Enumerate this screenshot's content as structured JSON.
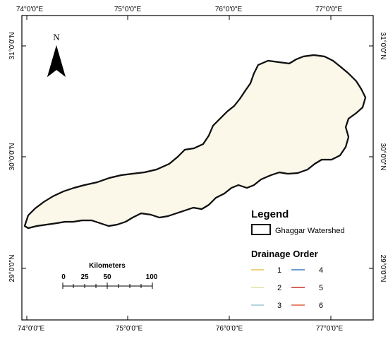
{
  "map": {
    "top_ticks": [
      "74°0'0\"E",
      "75°0'0\"E",
      "76°0'0\"E",
      "77°0'0\"E"
    ],
    "bottom_ticks": [
      "74°0'0\"E",
      "75°0'0\"E",
      "76°0'0\"E",
      "77°0'0\"E"
    ],
    "left_ticks": [
      "31°0'0\"N",
      "30°0'0\"N",
      "29°0'0\"N"
    ],
    "right_ticks": [
      "31°0'0\"N",
      "30°0'0\"N",
      "29°0'0\"N"
    ]
  },
  "north_arrow": {
    "letter": "N",
    "icon": "north-arrow-icon"
  },
  "scale_bar": {
    "title": "Kilometers",
    "labels": [
      "0",
      "25",
      "50",
      "100"
    ]
  },
  "legend": {
    "title": "Legend",
    "boundary_label": "Ghaggar Watershed",
    "drainage_title": "Drainage Order",
    "orders": [
      {
        "label": "1",
        "color": "#e8c15a"
      },
      {
        "label": "2",
        "color": "#e4e2a4"
      },
      {
        "label": "3",
        "color": "#9ec9d2"
      },
      {
        "label": "4",
        "color": "#3a7fc4"
      },
      {
        "label": "5",
        "color": "#c8302a"
      },
      {
        "label": "6",
        "color": "#d9603e"
      }
    ]
  },
  "colors": {
    "boundary": "#111111",
    "frame": "#000000"
  }
}
